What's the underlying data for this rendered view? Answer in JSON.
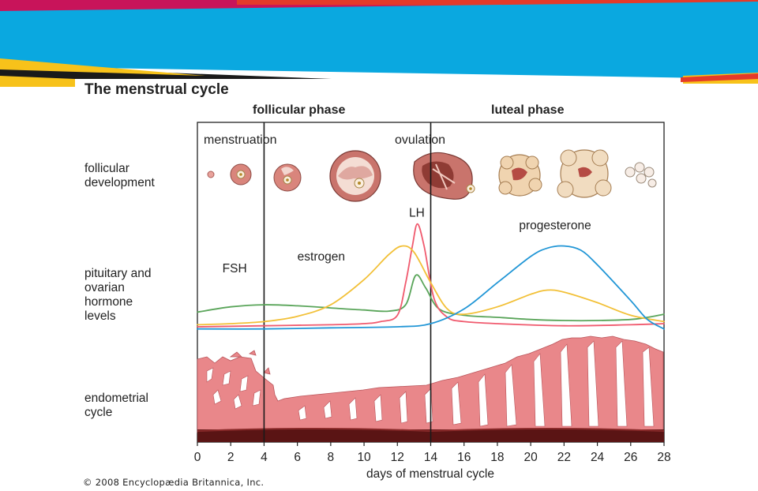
{
  "title": "The menstrual cycle",
  "phases": {
    "follicular": "follicular phase",
    "luteal": "luteal phase"
  },
  "rows": {
    "follicular": "follicular\ndevelopment",
    "hormones": "pituitary and\novarian\nhormone\nlevels",
    "endometrial": "endometrial\ncycle"
  },
  "events": {
    "menstruation": "menstruation",
    "ovulation": "ovulation"
  },
  "copyright": "© 2008 Encyclopædia Britannica, Inc.",
  "colors": {
    "banner_blue": "#0aa8e0",
    "banner_magenta": "#c8145a",
    "banner_yellow": "#f7c21a",
    "fsh": "#5aa55a",
    "lh": "#f05a6e",
    "estrogen": "#f2c037",
    "progesterone": "#2196d6",
    "tissue": "#e9878a",
    "tissue_dark": "#5a1414"
  },
  "chart_data": {
    "type": "line",
    "xlabel": "days of menstrual cycle",
    "xlim": [
      0,
      28
    ],
    "xticks": [
      0,
      2,
      4,
      6,
      8,
      10,
      12,
      14,
      16,
      18,
      20,
      22,
      24,
      26,
      28
    ],
    "ylim": [
      0,
      100
    ],
    "markers": [
      {
        "day": 4,
        "label": ""
      },
      {
        "day": 14,
        "label": ""
      }
    ],
    "series": [
      {
        "name": "FSH",
        "color": "#5aa55a",
        "label_at": [
          1.5,
          55
        ],
        "points": [
          [
            0,
            17
          ],
          [
            2,
            22
          ],
          [
            4,
            24
          ],
          [
            6,
            23
          ],
          [
            8,
            21
          ],
          [
            10,
            19
          ],
          [
            11.5,
            18
          ],
          [
            12.5,
            24
          ],
          [
            13.1,
            52
          ],
          [
            13.7,
            40
          ],
          [
            14.5,
            20
          ],
          [
            16,
            14
          ],
          [
            18,
            12
          ],
          [
            20,
            10
          ],
          [
            22,
            9
          ],
          [
            24,
            9
          ],
          [
            26,
            10
          ],
          [
            27,
            12
          ],
          [
            28,
            15
          ]
        ]
      },
      {
        "name": "LH",
        "color": "#f05a6e",
        "label_at": [
          12.7,
          108
        ],
        "points": [
          [
            0,
            3
          ],
          [
            4,
            4
          ],
          [
            8,
            5
          ],
          [
            10,
            6
          ],
          [
            11,
            8
          ],
          [
            12,
            14
          ],
          [
            12.5,
            45
          ],
          [
            12.9,
            80
          ],
          [
            13.2,
            101
          ],
          [
            13.6,
            80
          ],
          [
            14.2,
            30
          ],
          [
            15,
            12
          ],
          [
            16,
            8
          ],
          [
            18,
            6
          ],
          [
            22,
            4
          ],
          [
            26,
            5
          ],
          [
            28,
            6
          ]
        ]
      },
      {
        "name": "estrogen",
        "color": "#f2c037",
        "label_at": [
          6,
          66
        ],
        "points": [
          [
            0,
            5
          ],
          [
            2,
            6
          ],
          [
            4,
            8
          ],
          [
            6,
            13
          ],
          [
            8,
            24
          ],
          [
            10,
            48
          ],
          [
            11.5,
            72
          ],
          [
            12.3,
            80
          ],
          [
            13,
            74
          ],
          [
            14,
            45
          ],
          [
            15,
            20
          ],
          [
            16,
            15
          ],
          [
            18,
            22
          ],
          [
            20,
            34
          ],
          [
            21,
            38
          ],
          [
            22,
            36
          ],
          [
            24,
            26
          ],
          [
            26,
            14
          ],
          [
            28,
            8
          ]
        ]
      },
      {
        "name": "progesterone",
        "color": "#2196d6",
        "label_at": [
          19.3,
          96
        ],
        "points": [
          [
            0,
            1
          ],
          [
            4,
            1
          ],
          [
            8,
            2
          ],
          [
            12,
            3
          ],
          [
            14,
            6
          ],
          [
            16,
            20
          ],
          [
            18,
            45
          ],
          [
            20,
            70
          ],
          [
            21,
            78
          ],
          [
            22,
            80
          ],
          [
            23,
            76
          ],
          [
            24,
            62
          ],
          [
            26,
            28
          ],
          [
            27,
            10
          ],
          [
            28,
            1
          ]
        ]
      }
    ]
  }
}
